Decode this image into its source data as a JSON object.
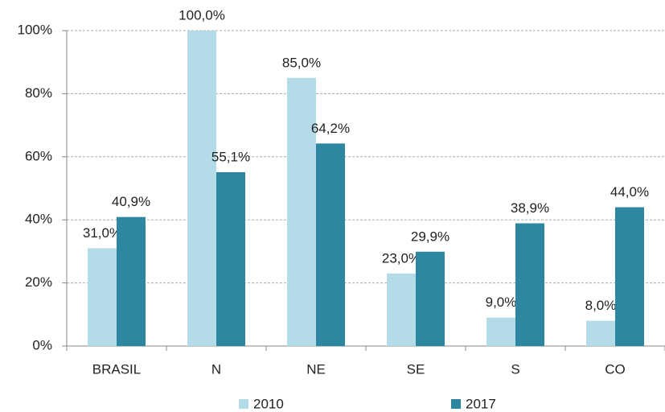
{
  "chart_data": {
    "type": "bar",
    "categories": [
      "BRASIL",
      "N",
      "NE",
      "SE",
      "S",
      "CO"
    ],
    "series": [
      {
        "name": "2010",
        "color": "#b4dce8",
        "values": [
          31.0,
          100.0,
          85.0,
          23.0,
          9.0,
          8.0
        ],
        "value_labels": [
          "31,0%",
          "100,0%",
          "85,0%",
          "23,0%",
          "9,0%",
          "8,0%"
        ]
      },
      {
        "name": "2017",
        "color": "#2e87a0",
        "values": [
          40.9,
          55.1,
          64.2,
          29.9,
          38.9,
          44.0
        ],
        "value_labels": [
          "40,9%",
          "55,1%",
          "64,2%",
          "29,9%",
          "38,9%",
          "44,0%"
        ]
      }
    ],
    "ylim": [
      0,
      100
    ],
    "yticks": [
      {
        "value": 0,
        "label": "0%"
      },
      {
        "value": 20,
        "label": "20%"
      },
      {
        "value": 40,
        "label": "40%"
      },
      {
        "value": 60,
        "label": "60%"
      },
      {
        "value": 80,
        "label": "80%"
      },
      {
        "value": 100,
        "label": "100%"
      }
    ],
    "grid": true,
    "legend": "bottom"
  }
}
